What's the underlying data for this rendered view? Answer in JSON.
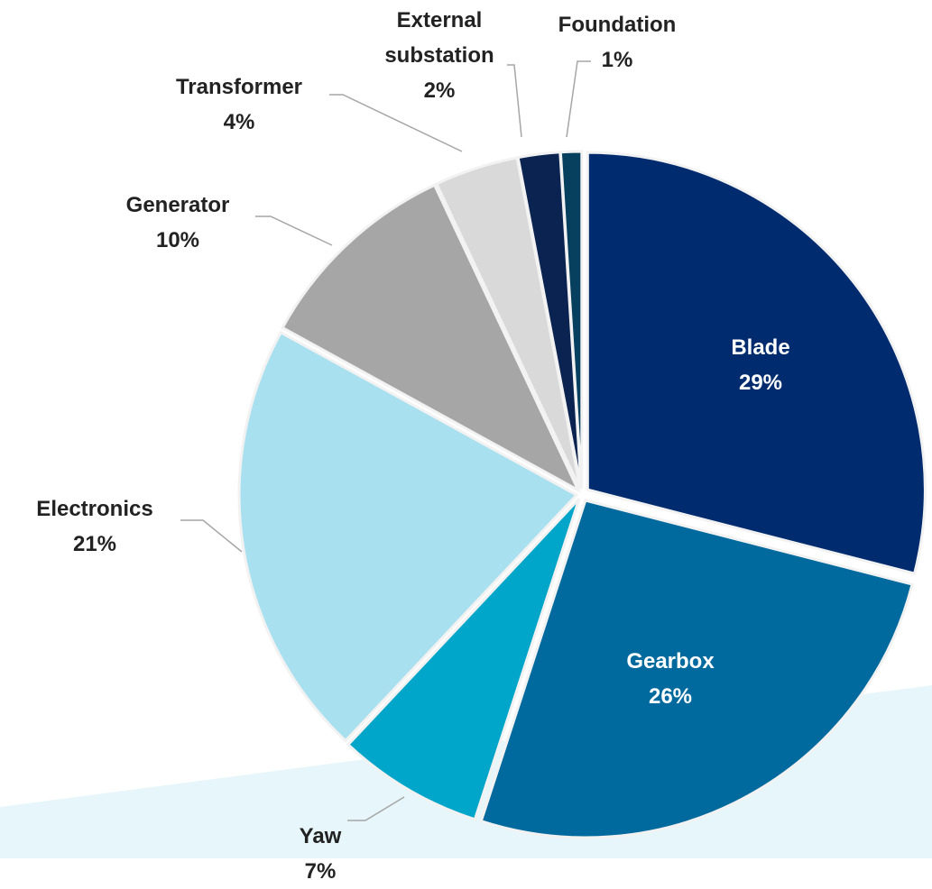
{
  "chart_data": {
    "type": "pie",
    "categories": [
      "Blade",
      "Gearbox",
      "Yaw",
      "Electronics",
      "Generator",
      "Transformer",
      "External substation",
      "Foundation"
    ],
    "values": [
      29,
      26,
      7,
      21,
      10,
      4,
      2,
      1
    ],
    "value_labels": [
      "29%",
      "26%",
      "7%",
      "21%",
      "10%",
      "4%",
      "2%",
      "1%"
    ],
    "colors": [
      "#002b6f",
      "#006a9e",
      "#00a6c9",
      "#a8e0ef",
      "#a6a6a6",
      "#d9d9d9",
      "#0b2350",
      "#073f5f"
    ]
  }
}
